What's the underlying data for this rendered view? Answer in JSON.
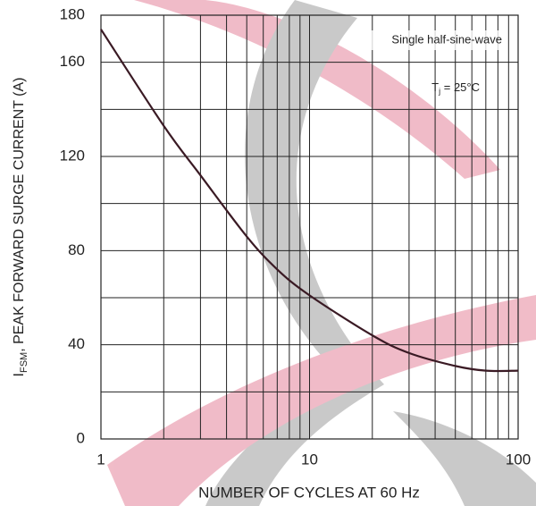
{
  "chart_data": {
    "type": "line",
    "x_label": "NUMBER OF CYCLES AT 60 Hz",
    "y_label": {
      "base": "I",
      "sub": "FSM",
      "rest": ", PEAK FORWARD SURGE CURRENT (A)"
    },
    "annotations": {
      "waveform": "Single half-sine-wave",
      "temperature": {
        "base": "T",
        "sub": "j",
        "rest": " = 25°C"
      }
    },
    "x": [
      1,
      2,
      3,
      5,
      7,
      10,
      20,
      30,
      50,
      70,
      100
    ],
    "series": [
      {
        "color": "#3a1a24",
        "values": [
          174,
          133,
          112,
          86,
          72,
          61,
          44,
          36.5,
          31,
          29,
          29
        ]
      }
    ],
    "xlim": [
      1,
      100
    ],
    "xticks": [
      1,
      10,
      100
    ],
    "log_x": true,
    "x_minor_ticks": [
      2,
      3,
      4,
      5,
      6,
      7,
      8,
      9,
      20,
      30,
      40,
      50,
      60,
      70,
      80,
      90
    ],
    "ylim": [
      0,
      180
    ],
    "yticks": [
      0,
      40,
      80,
      120,
      160,
      180
    ],
    "y_minor_ticks": [
      20,
      60,
      100,
      140
    ],
    "grid": true
  }
}
